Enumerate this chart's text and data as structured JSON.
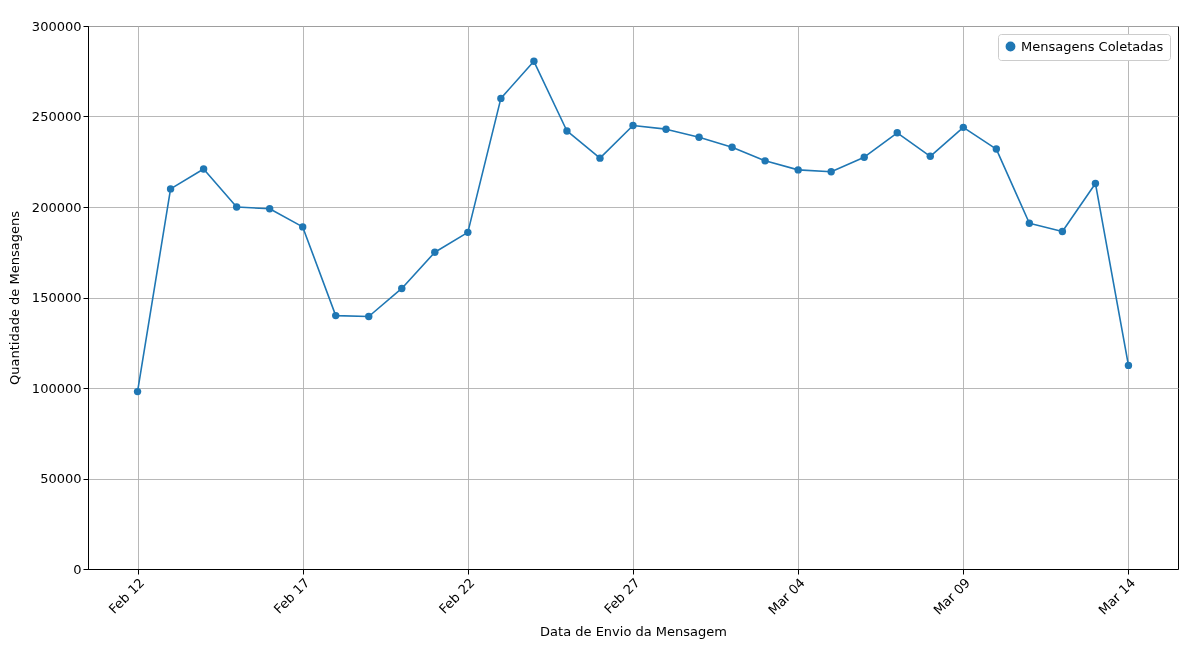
{
  "chart_data": {
    "type": "line",
    "xlabel": "Data de Envio da Mensagem",
    "ylabel": "Quantidade de Mensagens",
    "x": [
      "--02-12",
      "--02-13",
      "--02-14",
      "--02-15",
      "--02-16",
      "--02-17",
      "--02-18",
      "--02-19",
      "--02-20",
      "--02-21",
      "--02-22",
      "--02-23",
      "--02-24",
      "--02-25",
      "--02-26",
      "--02-27",
      "--02-28",
      "--03-01",
      "--03-02",
      "--03-03",
      "--03-04",
      "--03-05",
      "--03-06",
      "--03-07",
      "--03-08",
      "--03-09",
      "--03-10",
      "--03-11",
      "--03-12",
      "--03-13",
      "--03-14"
    ],
    "series": [
      {
        "name": "Mensagens Coletadas",
        "color": "#1f77b4",
        "values": [
          98000,
          210000,
          221000,
          200000,
          199000,
          189000,
          140000,
          139500,
          155000,
          175000,
          186000,
          260000,
          280500,
          242000,
          227000,
          245000,
          243000,
          238500,
          233000,
          225500,
          220500,
          219500,
          227500,
          241000,
          228000,
          244000,
          232000,
          191000,
          186500,
          213000,
          112500
        ]
      }
    ],
    "xlim": [
      "--02-10T12:00",
      "--03-15T12:00"
    ],
    "xticks": [
      {
        "value": "--02-12",
        "label": "Feb 12"
      },
      {
        "value": "--02-17",
        "label": "Feb 17"
      },
      {
        "value": "--02-22",
        "label": "Feb 22"
      },
      {
        "value": "--02-27",
        "label": "Feb 27"
      },
      {
        "value": "--03-04",
        "label": "Mar 04"
      },
      {
        "value": "--03-09",
        "label": "Mar 09"
      },
      {
        "value": "--03-14",
        "label": "Mar 14"
      }
    ],
    "ylim": [
      0,
      300000
    ],
    "yticks": [
      0,
      50000,
      100000,
      150000,
      200000,
      250000,
      300000
    ],
    "grid": true,
    "legend": "top right",
    "marker": "circle",
    "line_style": "solid"
  }
}
